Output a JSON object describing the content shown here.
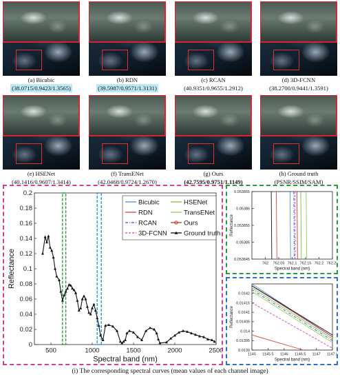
{
  "panels": [
    {
      "label": "(a) Bicubic",
      "metrics": "(38.0715/0.9423/1.3565)",
      "highlight": true,
      "best": false
    },
    {
      "label": "(b) RDN",
      "metrics": "(39.5987/0.9571/1.3131)",
      "highlight": true,
      "best": false
    },
    {
      "label": "(c) RCAN",
      "metrics": "(40.9351/0.9655/1.2912)",
      "highlight": false,
      "best": false
    },
    {
      "label": "(d) 3D-FCNN",
      "metrics": "(38.2700/0.9441/1.3591)",
      "highlight": false,
      "best": false
    },
    {
      "label": "(e) HSENet",
      "metrics": "(40.1416/0.9607/1.3414)",
      "highlight": false,
      "best": false
    },
    {
      "label": "(f) TransENet",
      "metrics": "(42.0468/0.9724/1.2670)",
      "highlight": false,
      "best": false
    },
    {
      "label": "(g) Ours",
      "metrics": "(42.7595/0.9751/1.1149)",
      "highlight": false,
      "best": true
    },
    {
      "label": "(h) Ground truth",
      "metrics": "(PSNR/SSIM/SAM)",
      "highlight": false,
      "best": false
    }
  ],
  "bottom_caption": "(i) The corresponding spectral curves (mean values of each channel image)",
  "legend": [
    {
      "name": "Bicubic",
      "color": "#4a90d9",
      "style": "solid",
      "marker": ""
    },
    {
      "name": "HSENet",
      "color": "#7bc043",
      "style": "solid",
      "marker": ""
    },
    {
      "name": "RDN",
      "color": "#d64545",
      "style": "solid",
      "marker": ""
    },
    {
      "name": "TransENet",
      "color": "#8fd14f",
      "style": "solid",
      "marker": ""
    },
    {
      "name": "RCAN",
      "color": "#3355cc",
      "style": "dashdot",
      "marker": ""
    },
    {
      "name": "Ours",
      "color": "#cc3333",
      "style": "solid",
      "marker": "circle"
    },
    {
      "name": "3D-FCNN",
      "color": "#cc44cc",
      "style": "dashed",
      "marker": ""
    },
    {
      "name": "Ground truth",
      "color": "#111111",
      "style": "solid",
      "marker": "triangle"
    }
  ],
  "chart_data": [
    {
      "type": "line",
      "xlabel": "Spectral band (nm)",
      "ylabel": "Reflectance",
      "xlim": [
        300,
        2500
      ],
      "ylim": [
        0,
        0.2
      ],
      "xticks": [
        "500",
        "1000",
        "1500",
        "2000",
        "2500"
      ],
      "yticks": [
        "0",
        "0.02",
        "0.04",
        "0.06",
        "0.08",
        "0.1",
        "0.12",
        "0.14",
        "0.16",
        "0.18",
        "0.2"
      ],
      "highlight_bands": [
        {
          "color": "#2a9a3a",
          "range": [
            640,
            680
          ]
        },
        {
          "color": "#2f8fd0",
          "range": [
            1060,
            1110
          ]
        }
      ],
      "series": [
        {
          "name": "Ground truth",
          "x": [
            400,
            430,
            450,
            470,
            490,
            510,
            530,
            550,
            570,
            600,
            620,
            640,
            660,
            680,
            700,
            720,
            740,
            760,
            780,
            800,
            820,
            840,
            860,
            880,
            900,
            920,
            940,
            960,
            980,
            1000,
            1020,
            1040,
            1060,
            1080,
            1100,
            1130,
            1160,
            1200,
            1250,
            1300,
            1340,
            1360,
            1380,
            1400,
            1420,
            1450,
            1500,
            1550,
            1600,
            1650,
            1700,
            1750,
            1780,
            1800,
            1820,
            1900,
            1950,
            2000,
            2050,
            2100,
            2150,
            2200,
            2250,
            2300,
            2350,
            2400,
            2450,
            2480
          ],
          "y": [
            0.12,
            0.142,
            0.135,
            0.143,
            0.128,
            0.124,
            0.115,
            0.1,
            0.09,
            0.085,
            0.07,
            0.058,
            0.065,
            0.07,
            0.074,
            0.079,
            0.078,
            0.074,
            0.072,
            0.068,
            0.058,
            0.045,
            0.048,
            0.06,
            0.064,
            0.06,
            0.05,
            0.042,
            0.04,
            0.048,
            0.053,
            0.045,
            0.035,
            0.025,
            0.012,
            0.006,
            0.025,
            0.026,
            0.024,
            0.018,
            0.004,
            0.002,
            0.004,
            0.006,
            0.015,
            0.018,
            0.016,
            0.01,
            0.006,
            0.018,
            0.022,
            0.02,
            0.015,
            0.007,
            0.002,
            0.003,
            0.008,
            0.012,
            0.016,
            0.018,
            0.017,
            0.015,
            0.013,
            0.011,
            0.01,
            0.007,
            0.006,
            0.004
          ]
        }
      ]
    },
    {
      "type": "line",
      "xlabel": "Spectral band (nm)",
      "ylabel": "Reflectance",
      "xlim": [
        761.95,
        762.25
      ],
      "ylim": [
        0.053845,
        0.053865
      ],
      "xticks": [
        "762",
        "762.05",
        "762.1",
        "762.15",
        "762.2",
        "762.25"
      ],
      "yticks": [
        "0.053845",
        "0.05385",
        "0.053855",
        "0.05386",
        "0.053865"
      ],
      "series": [
        {
          "name": "Bicubic",
          "x": [
            762.092,
            762.094
          ],
          "y": [
            0.053865,
            0.053845
          ]
        },
        {
          "name": "RDN",
          "x": [
            762.041,
            762.043
          ],
          "y": [
            0.053865,
            0.053845
          ]
        },
        {
          "name": "RCAN",
          "x": [
            762.106,
            762.108
          ],
          "y": [
            0.053865,
            0.053845
          ]
        },
        {
          "name": "3D-FCNN",
          "x": [
            762.11,
            762.112
          ],
          "y": [
            0.053865,
            0.053845
          ]
        },
        {
          "name": "HSENet",
          "x": [
            762.132,
            762.134
          ],
          "y": [
            0.053865,
            0.053845
          ]
        },
        {
          "name": "TransENet",
          "x": [
            762.152,
            762.154
          ],
          "y": [
            0.053865,
            0.053845
          ]
        },
        {
          "name": "Ours",
          "x": [
            762.118,
            762.12
          ],
          "y": [
            0.053865,
            0.053845
          ]
        },
        {
          "name": "Ground truth",
          "x": [
            762.022,
            762.024
          ],
          "y": [
            0.053865,
            0.053845
          ]
        }
      ]
    },
    {
      "type": "line",
      "xlabel": "Spectral band (nm)",
      "ylabel": "Reflectance",
      "xlim": [
        1145,
        1147.5
      ],
      "ylim": [
        0.0139,
        0.01425
      ],
      "xticks": [
        "1145",
        "1145.5",
        "1146",
        "1146.5",
        "1147",
        "1147.5"
      ],
      "yticks": [
        "0.0139",
        "0.01395",
        "0.014",
        "0.01405",
        "0.0141",
        "0.01415",
        "0.0142"
      ],
      "series": [
        {
          "name": "Bicubic",
          "x": [
            1145,
            1147.5
          ],
          "y": [
            0.01425,
            0.01397
          ]
        },
        {
          "name": "RDN",
          "x": [
            1145,
            1146.6
          ],
          "y": [
            0.01398,
            0.0139
          ]
        },
        {
          "name": "RCAN",
          "x": [
            1145,
            1147.5
          ],
          "y": [
            0.01422,
            0.01395
          ]
        },
        {
          "name": "3D-FCNN",
          "x": [
            1145,
            1147.5
          ],
          "y": [
            0.01415,
            0.01391
          ]
        },
        {
          "name": "HSENet",
          "x": [
            1145,
            1147.5
          ],
          "y": [
            0.01423,
            0.01396
          ]
        },
        {
          "name": "TransENet",
          "x": [
            1145,
            1147.5
          ],
          "y": [
            0.01421,
            0.01394
          ]
        },
        {
          "name": "Ours",
          "x": [
            1145,
            1147.5
          ],
          "y": [
            0.01424,
            0.01397
          ]
        },
        {
          "name": "Ground truth",
          "x": [
            1145,
            1147.5
          ],
          "y": [
            0.01424,
            0.01398
          ]
        }
      ]
    }
  ]
}
